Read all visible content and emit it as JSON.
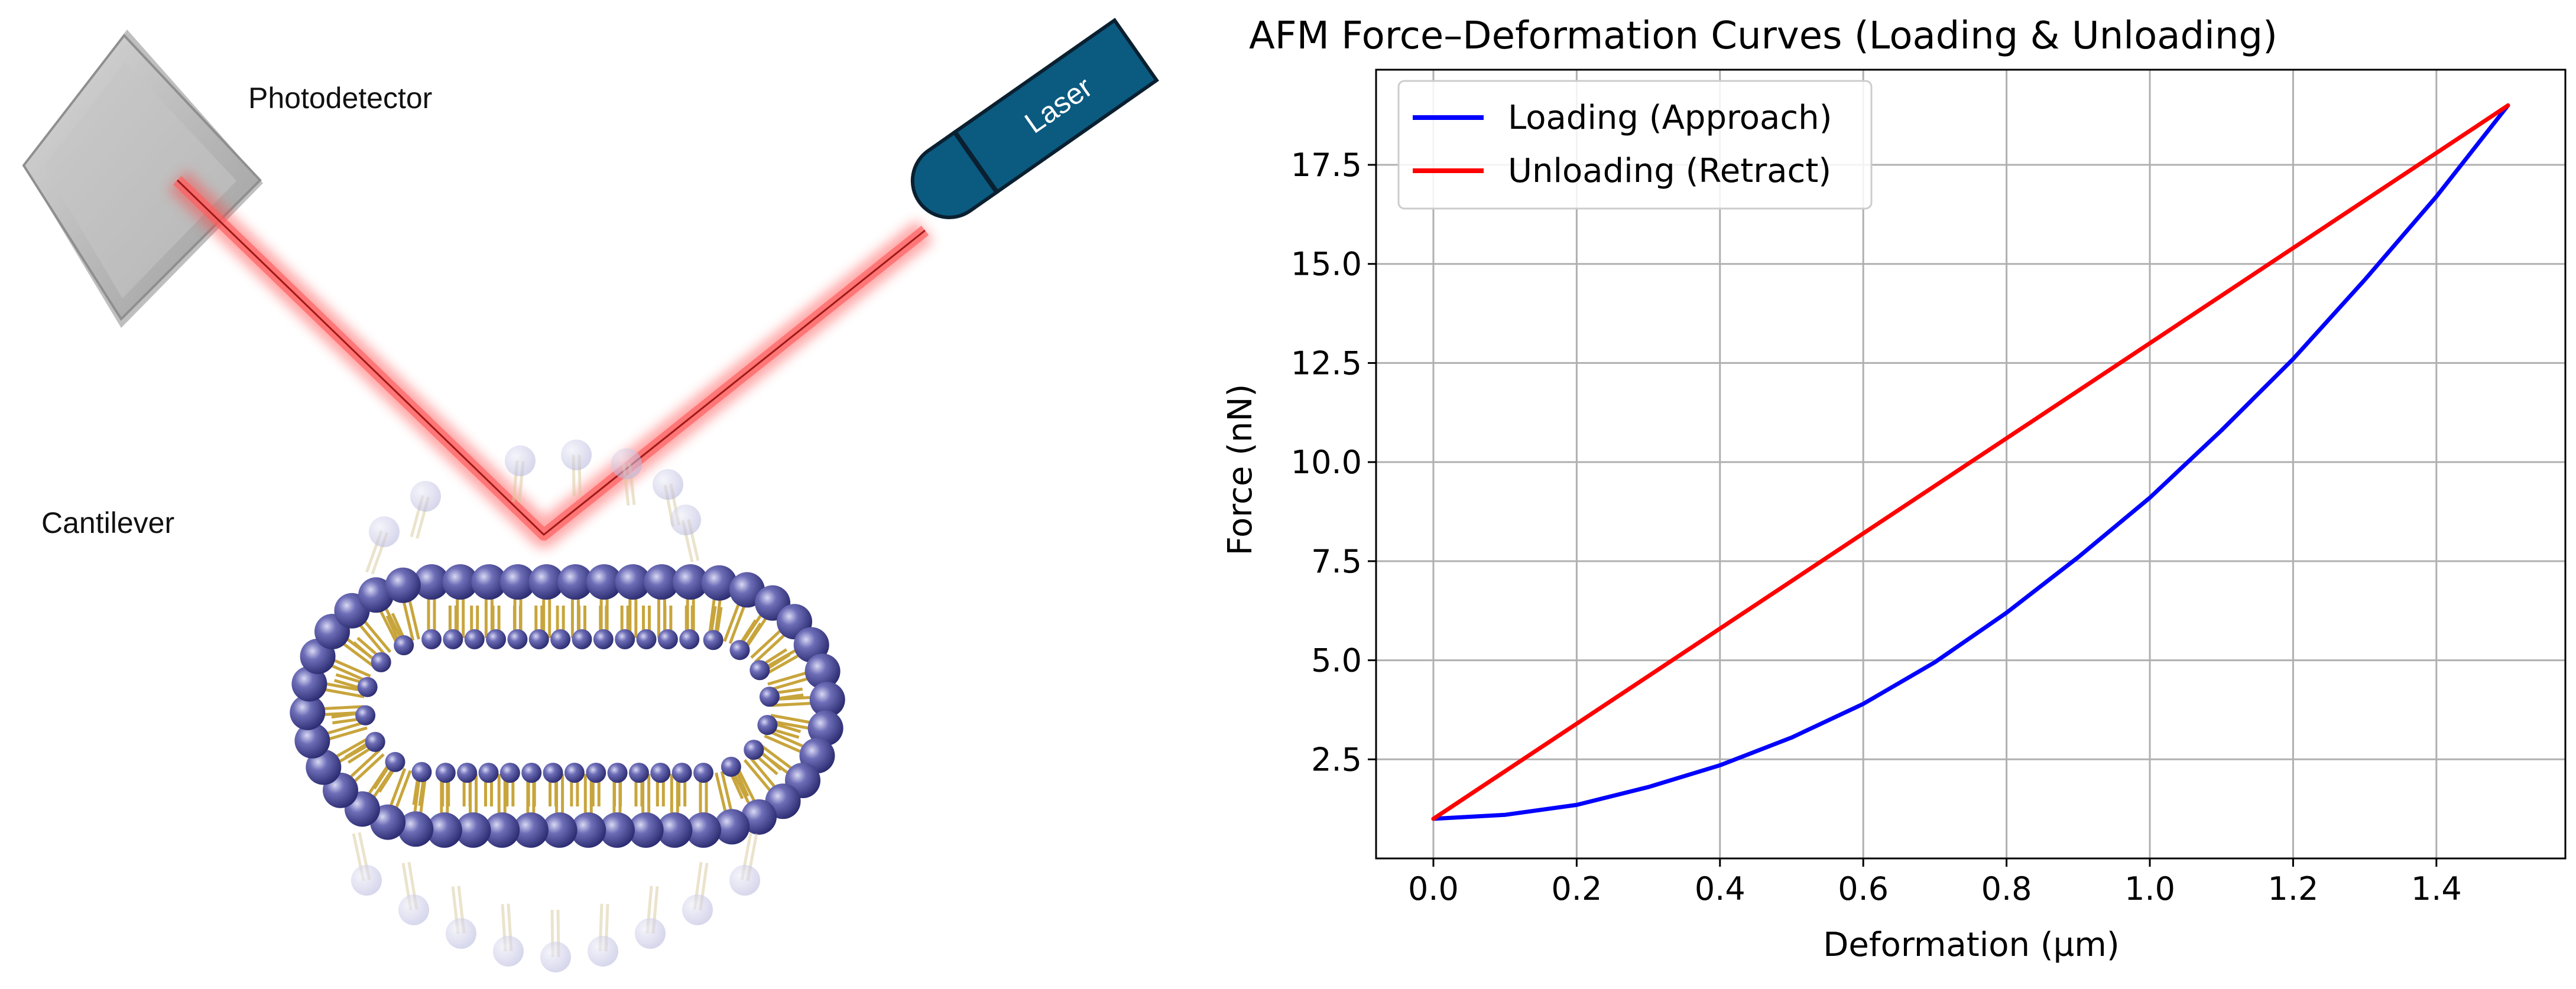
{
  "illustration": {
    "photodetector_label": "Photodetector",
    "cantilever_label": "Cantilever",
    "laser_label": "Laser",
    "colors": {
      "beam": "#ff2a2a",
      "laser_body": "#0b5a80",
      "lipid_head": "#3c3c8c",
      "lipid_tail": "#c8a53c",
      "detector": "#bdbdbd"
    }
  },
  "chart_data": {
    "type": "line",
    "title": "AFM Force–Deformation Curves (Loading & Unloading)",
    "xlabel": "Deformation (µm)",
    "ylabel": "Force (nN)",
    "xlim": [
      -0.08,
      1.58
    ],
    "ylim": [
      0.0,
      19.9
    ],
    "xticks": [
      0.0,
      0.2,
      0.4,
      0.6,
      0.8,
      1.0,
      1.2,
      1.4
    ],
    "xtick_labels": [
      "0.0",
      "0.2",
      "0.4",
      "0.6",
      "0.8",
      "1.0",
      "1.2",
      "1.4"
    ],
    "yticks": [
      2.5,
      5.0,
      7.5,
      10.0,
      12.5,
      15.0,
      17.5
    ],
    "ytick_labels": [
      "2.5",
      "5.0",
      "7.5",
      "10.0",
      "12.5",
      "15.0",
      "17.5"
    ],
    "grid": true,
    "legend_position": "upper-left",
    "series": [
      {
        "name": "Loading (Approach)",
        "color": "#0000ff",
        "x": [
          0.0,
          0.1,
          0.2,
          0.3,
          0.4,
          0.5,
          0.6,
          0.7,
          0.8,
          0.9,
          1.0,
          1.1,
          1.2,
          1.3,
          1.4,
          1.5
        ],
        "y": [
          1.0,
          1.1,
          1.35,
          1.8,
          2.35,
          3.05,
          3.9,
          4.95,
          6.2,
          7.6,
          9.1,
          10.8,
          12.6,
          14.6,
          16.7,
          19.0
        ]
      },
      {
        "name": "Unloading (Retract)",
        "color": "#ff0000",
        "x": [
          0.0,
          0.25,
          0.5,
          0.75,
          1.0,
          1.25,
          1.5
        ],
        "y": [
          1.0,
          4.0,
          7.0,
          10.0,
          13.0,
          16.0,
          19.0
        ]
      }
    ]
  }
}
